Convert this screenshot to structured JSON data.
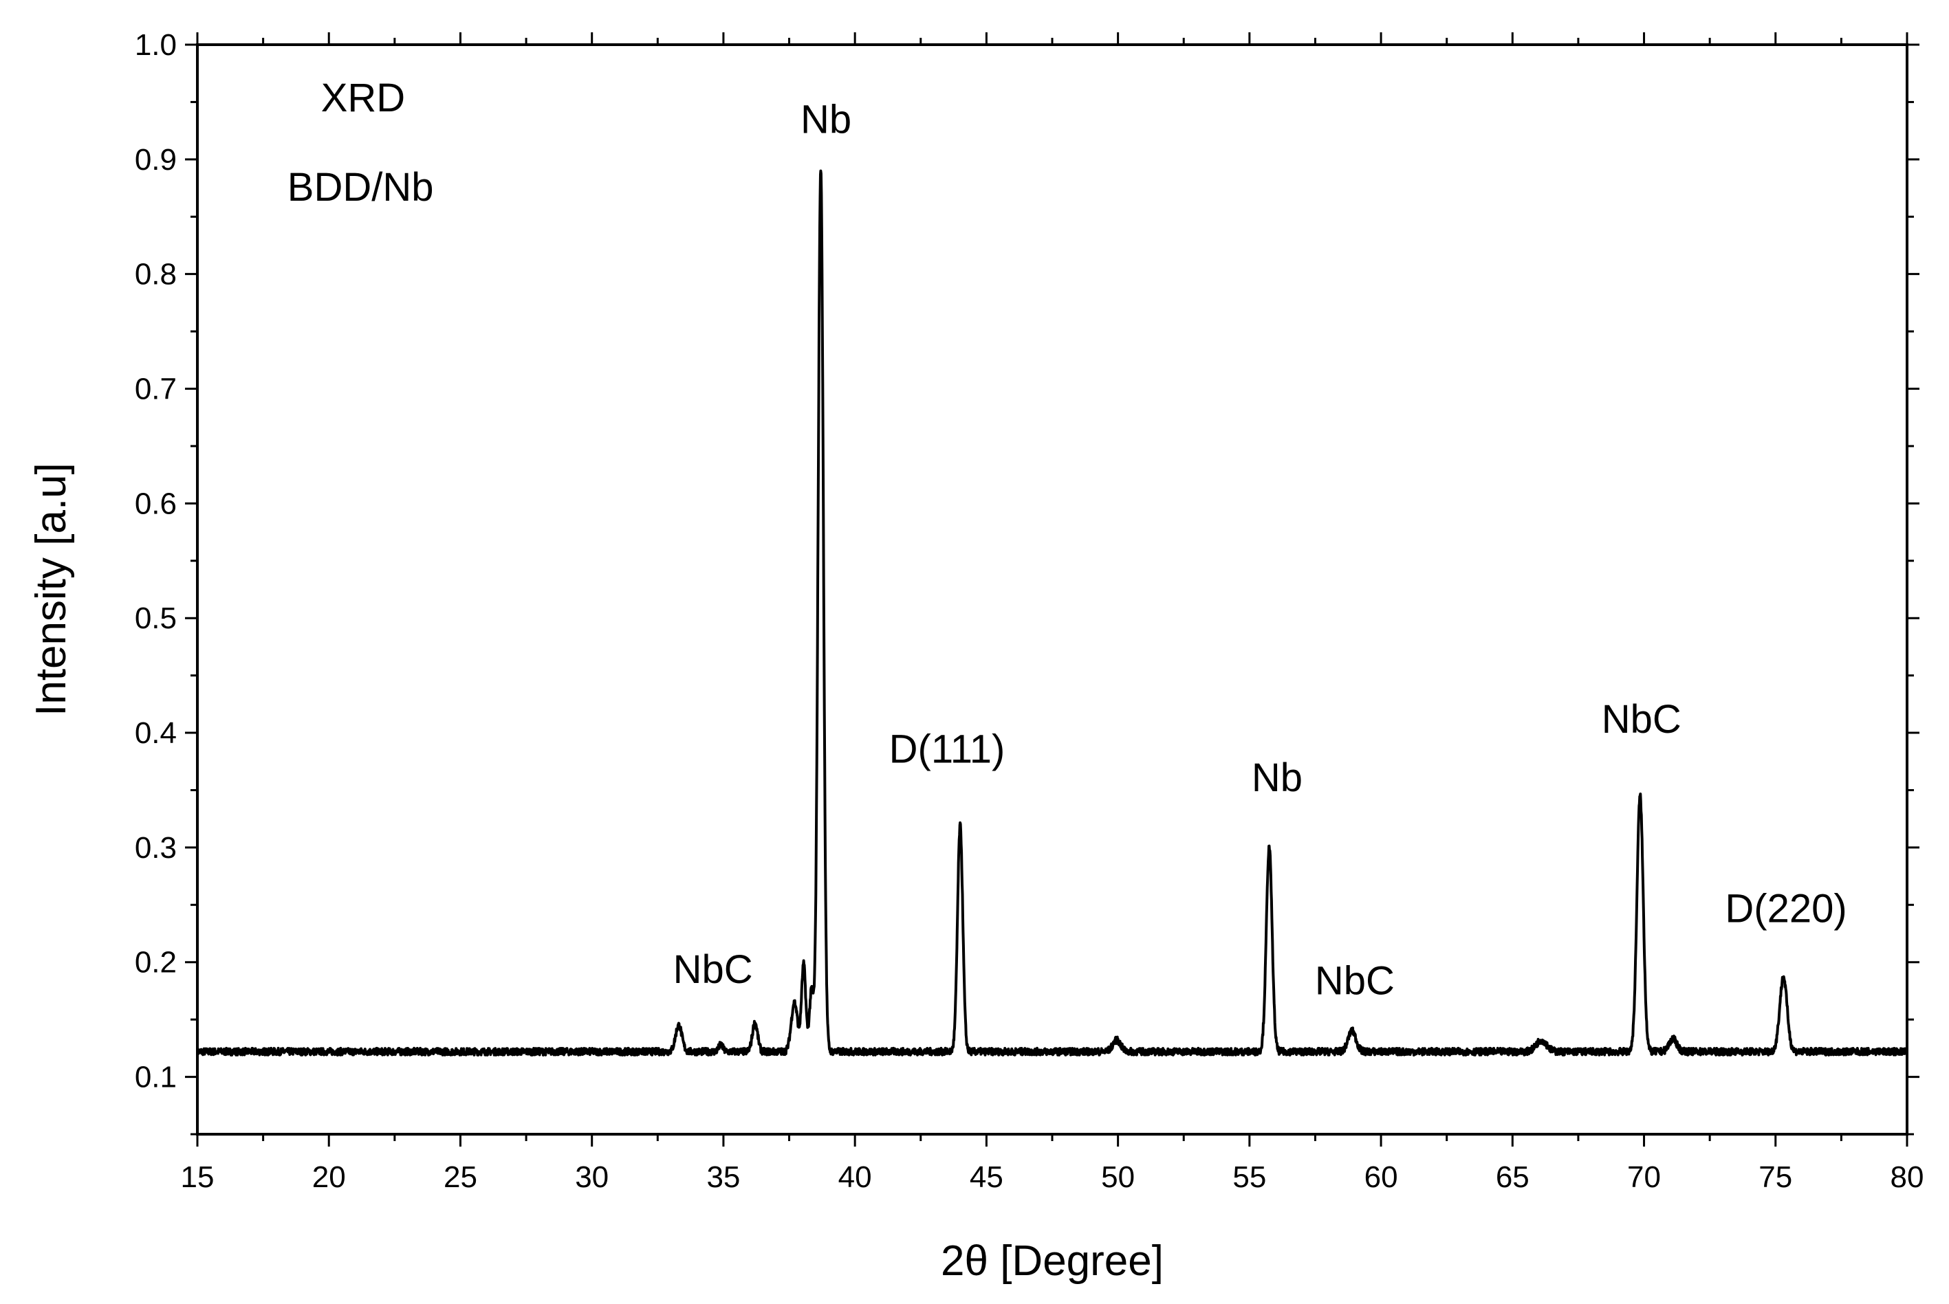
{
  "chart_data": {
    "type": "line",
    "title": "",
    "xlabel": "2θ [Degree]",
    "ylabel": "Intensity [a.u]",
    "xlim": [
      15,
      80
    ],
    "ylim": [
      0.05,
      1.0
    ],
    "xticks": [
      15,
      20,
      25,
      30,
      35,
      40,
      45,
      50,
      55,
      60,
      65,
      70,
      75,
      80
    ],
    "yticks": [
      0.1,
      0.2,
      0.3,
      0.4,
      0.5,
      0.6,
      0.7,
      0.8,
      0.9,
      1.0
    ],
    "ytick_labels": [
      "0.1",
      "0.2",
      "0.3",
      "0.4",
      "0.5",
      "0.6",
      "0.7",
      "0.8",
      "0.9",
      "1.0"
    ],
    "grid": false,
    "baseline": 0.122,
    "series": [
      {
        "color": "#000000",
        "peaks": [
          {
            "x": 33.3,
            "height": 0.145,
            "width": 0.12
          },
          {
            "x": 34.9,
            "height": 0.128,
            "width": 0.08
          },
          {
            "x": 36.2,
            "height": 0.147,
            "width": 0.1
          },
          {
            "x": 37.7,
            "height": 0.165,
            "width": 0.12
          },
          {
            "x": 38.05,
            "height": 0.198,
            "width": 0.08
          },
          {
            "x": 38.35,
            "height": 0.175,
            "width": 0.08
          },
          {
            "x": 38.7,
            "height": 0.892,
            "width": 0.1
          },
          {
            "x": 44.0,
            "height": 0.319,
            "width": 0.1
          },
          {
            "x": 49.95,
            "height": 0.132,
            "width": 0.15
          },
          {
            "x": 55.75,
            "height": 0.3,
            "width": 0.11
          },
          {
            "x": 58.9,
            "height": 0.14,
            "width": 0.15
          },
          {
            "x": 66.1,
            "height": 0.132,
            "width": 0.2
          },
          {
            "x": 69.85,
            "height": 0.345,
            "width": 0.12
          },
          {
            "x": 71.1,
            "height": 0.133,
            "width": 0.15
          },
          {
            "x": 75.3,
            "height": 0.187,
            "width": 0.14
          }
        ]
      }
    ],
    "annotations": [
      {
        "text": "XRD",
        "x": 21.3,
        "y": 0.942
      },
      {
        "text": "BDD/Nb",
        "x": 21.2,
        "y": 0.864
      },
      {
        "text": "Nb",
        "x": 38.9,
        "y": 0.923
      },
      {
        "text": "NbC",
        "x": 34.6,
        "y": 0.182
      },
      {
        "text": "D(111)",
        "x": 43.5,
        "y": 0.374
      },
      {
        "text": "Nb",
        "x": 56.05,
        "y": 0.349
      },
      {
        "text": "NbC",
        "x": 59.0,
        "y": 0.172
      },
      {
        "text": "NbC",
        "x": 69.9,
        "y": 0.4
      },
      {
        "text": "D(220)",
        "x": 75.4,
        "y": 0.235
      }
    ]
  }
}
